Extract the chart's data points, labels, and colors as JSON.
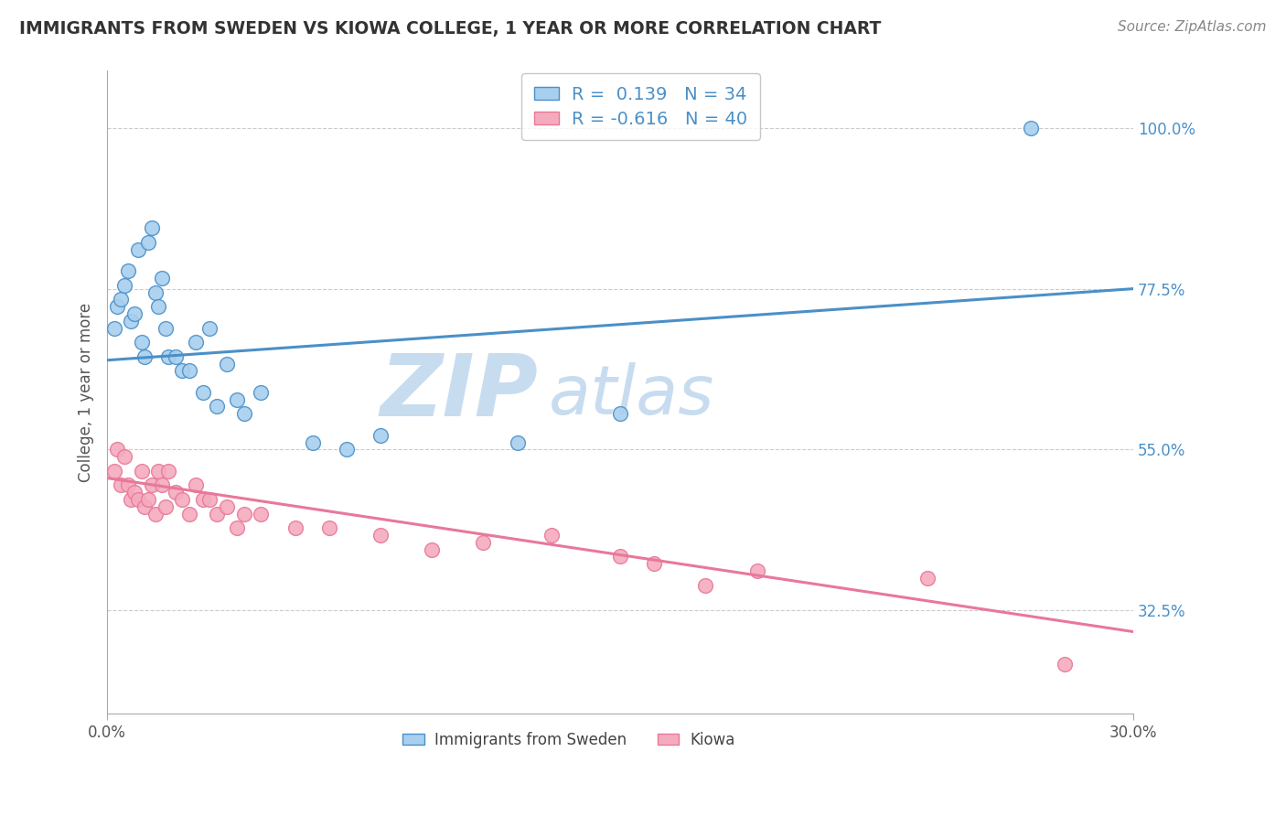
{
  "title": "IMMIGRANTS FROM SWEDEN VS KIOWA COLLEGE, 1 YEAR OR MORE CORRELATION CHART",
  "source_text": "Source: ZipAtlas.com",
  "ylabel": "College, 1 year or more",
  "xmin": 0.0,
  "xmax": 0.3,
  "ymin": 0.18,
  "ymax": 1.08,
  "ytick_labels_right": [
    "32.5%",
    "55.0%",
    "77.5%",
    "100.0%"
  ],
  "ytick_values_right": [
    0.325,
    0.55,
    0.775,
    1.0
  ],
  "legend_label1": "Immigrants from Sweden",
  "legend_label2": "Kiowa",
  "R1": 0.139,
  "N1": 34,
  "R2": -0.616,
  "N2": 40,
  "color_blue": "#A8CFEE",
  "color_pink": "#F4ABBE",
  "line_color_blue": "#4A90C8",
  "line_color_pink": "#E8789A",
  "watermark_color": "#C8DCF0",
  "watermark_text_zip": "ZIP",
  "watermark_text_atlas": "atlas",
  "background_color": "#FFFFFF",
  "grid_color": "#CCCCCC",
  "title_color": "#333333",
  "source_color": "#888888",
  "blue_scatter_x": [
    0.002,
    0.003,
    0.004,
    0.005,
    0.006,
    0.007,
    0.008,
    0.009,
    0.01,
    0.011,
    0.012,
    0.013,
    0.014,
    0.015,
    0.016,
    0.017,
    0.018,
    0.02,
    0.022,
    0.024,
    0.026,
    0.028,
    0.03,
    0.032,
    0.035,
    0.038,
    0.04,
    0.045,
    0.06,
    0.07,
    0.08,
    0.12,
    0.15,
    0.27
  ],
  "blue_scatter_y": [
    0.72,
    0.75,
    0.76,
    0.78,
    0.8,
    0.73,
    0.74,
    0.83,
    0.7,
    0.68,
    0.84,
    0.86,
    0.77,
    0.75,
    0.79,
    0.72,
    0.68,
    0.68,
    0.66,
    0.66,
    0.7,
    0.63,
    0.72,
    0.61,
    0.67,
    0.62,
    0.6,
    0.63,
    0.56,
    0.55,
    0.57,
    0.56,
    0.6,
    1.0
  ],
  "pink_scatter_x": [
    0.002,
    0.003,
    0.004,
    0.005,
    0.006,
    0.007,
    0.008,
    0.009,
    0.01,
    0.011,
    0.012,
    0.013,
    0.014,
    0.015,
    0.016,
    0.017,
    0.018,
    0.02,
    0.022,
    0.024,
    0.026,
    0.028,
    0.03,
    0.032,
    0.035,
    0.038,
    0.04,
    0.045,
    0.055,
    0.065,
    0.08,
    0.095,
    0.11,
    0.13,
    0.15,
    0.16,
    0.175,
    0.19,
    0.24,
    0.28
  ],
  "pink_scatter_y": [
    0.52,
    0.55,
    0.5,
    0.54,
    0.5,
    0.48,
    0.49,
    0.48,
    0.52,
    0.47,
    0.48,
    0.5,
    0.46,
    0.52,
    0.5,
    0.47,
    0.52,
    0.49,
    0.48,
    0.46,
    0.5,
    0.48,
    0.48,
    0.46,
    0.47,
    0.44,
    0.46,
    0.46,
    0.44,
    0.44,
    0.43,
    0.41,
    0.42,
    0.43,
    0.4,
    0.39,
    0.36,
    0.38,
    0.37,
    0.25
  ],
  "blue_line_x0": 0.0,
  "blue_line_y0": 0.675,
  "blue_line_x1": 0.3,
  "blue_line_y1": 0.775,
  "pink_line_x0": 0.0,
  "pink_line_y0": 0.51,
  "pink_line_x1": 0.3,
  "pink_line_y1": 0.295
}
